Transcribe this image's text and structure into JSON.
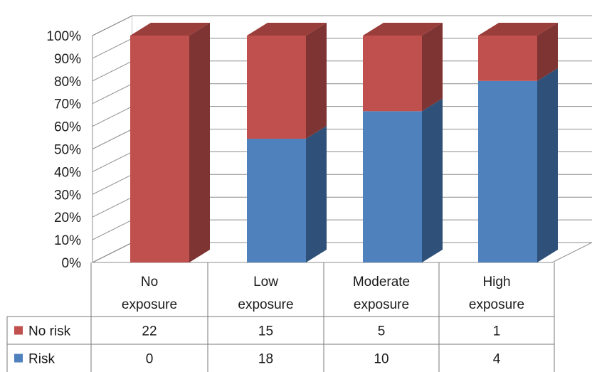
{
  "chart_data": {
    "type": "bar",
    "stacked": true,
    "percent_stacked": true,
    "three_d": true,
    "categories": [
      "No exposure",
      "Low exposure",
      "Moderate exposure",
      "High exposure"
    ],
    "category_lines": [
      [
        "No",
        "exposure"
      ],
      [
        "Low",
        "exposure"
      ],
      [
        "Moderate",
        "exposure"
      ],
      [
        "High",
        "exposure"
      ]
    ],
    "series": [
      {
        "name": "Risk",
        "values": [
          0,
          18,
          10,
          4
        ],
        "color": "#4f81bd",
        "side_color": "#2f5179",
        "top_color": "#3c679a"
      },
      {
        "name": "No risk",
        "values": [
          22,
          15,
          5,
          1
        ],
        "color": "#c0504d",
        "side_color": "#7e3432",
        "top_color": "#9a3e3b"
      }
    ],
    "table_rows": [
      "No risk",
      "Risk"
    ],
    "y_ticks": [
      "0%",
      "10%",
      "20%",
      "30%",
      "40%",
      "50%",
      "60%",
      "70%",
      "80%",
      "90%",
      "100%"
    ],
    "ylim": [
      0,
      100
    ],
    "ylabel": "",
    "xlabel": "",
    "title": "",
    "grid": true,
    "legend": "data-table"
  }
}
